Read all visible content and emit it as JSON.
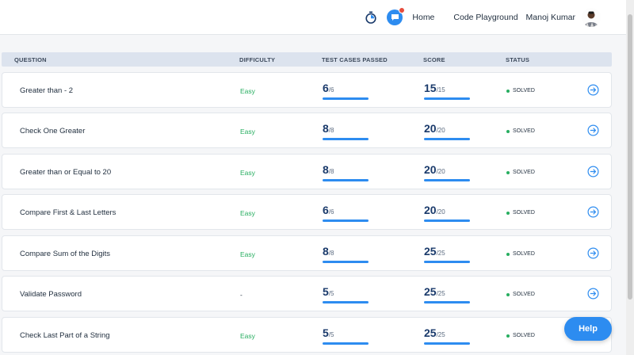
{
  "header": {
    "nav": [
      "Home",
      "Code Playground"
    ],
    "user_name": "Manoj Kumar",
    "icons": [
      "stopwatch-icon",
      "chat-icon",
      "avatar"
    ],
    "colors": {
      "accent": "#2d8cf0",
      "notification": "#e74c3c",
      "easy": "#27ae60",
      "solved": "#27ae60"
    }
  },
  "table": {
    "columns": [
      "QUESTION",
      "DIFFICULTY",
      "TEST CASES PASSED",
      "SCORE",
      "STATUS"
    ],
    "rows": [
      {
        "question": "Greater than - 2",
        "difficulty": "Easy",
        "passed": "6",
        "total": "/6",
        "score": "15",
        "max": "/15",
        "status": "SOLVED"
      },
      {
        "question": "Check One Greater",
        "difficulty": "Easy",
        "passed": "8",
        "total": "/8",
        "score": "20",
        "max": "/20",
        "status": "SOLVED"
      },
      {
        "question": "Greater than or Equal to 20",
        "difficulty": "Easy",
        "passed": "8",
        "total": "/8",
        "score": "20",
        "max": "/20",
        "status": "SOLVED"
      },
      {
        "question": "Compare First & Last Letters",
        "difficulty": "Easy",
        "passed": "6",
        "total": "/6",
        "score": "20",
        "max": "/20",
        "status": "SOLVED"
      },
      {
        "question": "Compare Sum of the Digits",
        "difficulty": "Easy",
        "passed": "8",
        "total": "/8",
        "score": "25",
        "max": "/25",
        "status": "SOLVED"
      },
      {
        "question": "Validate Password",
        "difficulty": "-",
        "passed": "5",
        "total": "/5",
        "score": "25",
        "max": "/25",
        "status": "SOLVED"
      },
      {
        "question": "Check Last Part of a String",
        "difficulty": "Easy",
        "passed": "5",
        "total": "/5",
        "score": "25",
        "max": "/25",
        "status": "SOLVED"
      }
    ]
  },
  "help_label": "Help"
}
